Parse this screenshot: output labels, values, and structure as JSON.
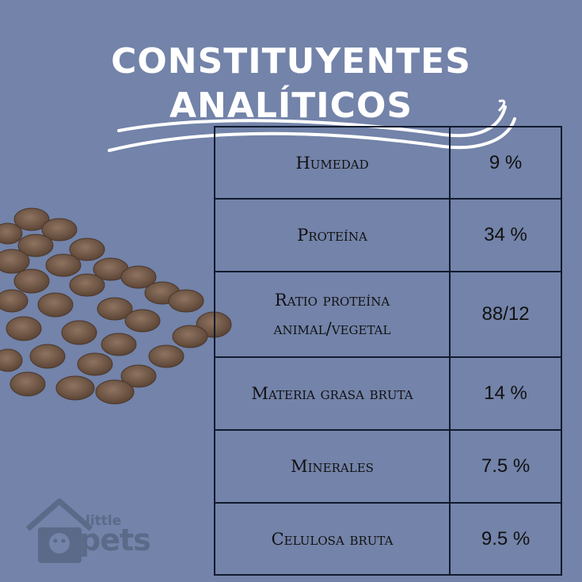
{
  "title": {
    "line1": "CONSTITUYENTES",
    "line2": "ANALÍTICOS"
  },
  "rows": [
    {
      "label": "Humedad",
      "value": "9 %"
    },
    {
      "label": "Proteína",
      "value": "34 %"
    },
    {
      "label": "Ratio proteína animal/vegetal",
      "value": "88/12"
    },
    {
      "label": "Materia grasa bruta",
      "value": "14 %"
    },
    {
      "label": "Minerales",
      "value": "7.5 %"
    },
    {
      "label": "Celulosa bruta",
      "value": "9.5 %"
    }
  ],
  "logo": {
    "top_word": "little",
    "main_word": "pets"
  },
  "colors": {
    "background": "#7383a9",
    "title": "#ffffff",
    "table_border": "#111a2e",
    "kibble": "#7a5e4a",
    "logo": "#5a6a88"
  }
}
